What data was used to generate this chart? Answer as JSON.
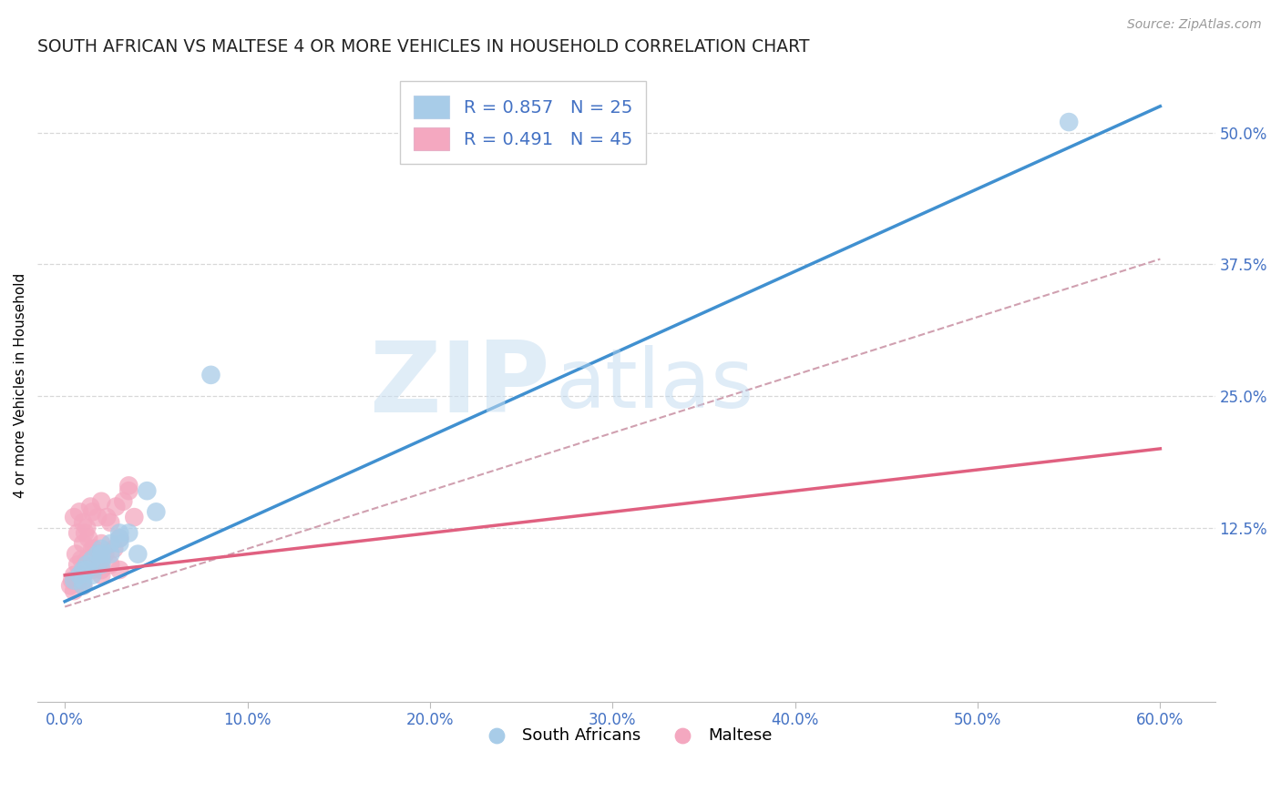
{
  "title": "SOUTH AFRICAN VS MALTESE 4 OR MORE VEHICLES IN HOUSEHOLD CORRELATION CHART",
  "source": "Source: ZipAtlas.com",
  "ylabel": "4 or more Vehicles in Household",
  "xlabel_vals": [
    0.0,
    10.0,
    20.0,
    30.0,
    40.0,
    50.0,
    60.0
  ],
  "xlabel_ticks": [
    "0.0%",
    "10.0%",
    "20.0%",
    "30.0%",
    "40.0%",
    "50.0%",
    "60.0%"
  ],
  "ytick_vals": [
    12.5,
    25.0,
    37.5,
    50.0
  ],
  "ytick_labels": [
    "12.5%",
    "25.0%",
    "37.5%",
    "50.0%"
  ],
  "xlim": [
    -1.5,
    63.0
  ],
  "ylim": [
    -4.0,
    56.0
  ],
  "watermark_zip": "ZIP",
  "watermark_atlas": "atlas",
  "legend_r_blue": "R = 0.857",
  "legend_n_blue": "N = 25",
  "legend_r_pink": "R = 0.491",
  "legend_n_pink": "N = 45",
  "legend_bottom_blue": "South Africans",
  "legend_bottom_pink": "Maltese",
  "blue_scatter_color": "#a8cce8",
  "pink_scatter_color": "#f4a8c0",
  "blue_line_color": "#4090d0",
  "pink_line_color": "#e06080",
  "ref_line_color": "#d0a0b0",
  "grid_color": "#d8d8d8",
  "title_color": "#222222",
  "tick_color": "#4472c4",
  "title_fontsize": 13.5,
  "tick_fontsize": 12,
  "source_fontsize": 10,
  "ylabel_fontsize": 11,
  "sa_x": [
    0.5,
    0.8,
    1.0,
    1.2,
    1.5,
    1.8,
    2.0,
    2.5,
    3.0,
    3.5,
    4.0,
    1.0,
    1.5,
    2.0,
    2.5,
    3.0,
    1.2,
    2.0,
    1.0,
    2.0,
    3.0,
    5.0,
    4.5,
    8.0,
    55.0
  ],
  "sa_y": [
    7.5,
    8.0,
    8.5,
    9.0,
    9.5,
    10.0,
    10.5,
    11.0,
    11.5,
    12.0,
    10.0,
    7.0,
    8.0,
    9.0,
    10.0,
    11.0,
    8.5,
    9.5,
    7.5,
    10.0,
    12.0,
    14.0,
    16.0,
    27.0,
    51.0
  ],
  "mt_x": [
    0.3,
    0.5,
    0.5,
    0.7,
    0.8,
    0.8,
    1.0,
    1.0,
    1.0,
    1.2,
    1.2,
    1.5,
    1.5,
    1.5,
    1.8,
    1.8,
    2.0,
    2.0,
    2.0,
    2.2,
    2.5,
    2.5,
    3.0,
    3.0,
    3.5,
    0.4,
    0.6,
    0.9,
    1.1,
    1.3,
    1.6,
    1.9,
    2.3,
    2.7,
    3.2,
    3.8,
    0.5,
    0.7,
    1.0,
    1.4,
    2.0,
    2.8,
    3.5,
    0.6,
    1.2
  ],
  "mt_y": [
    7.0,
    8.0,
    13.5,
    9.0,
    7.5,
    14.0,
    8.0,
    11.0,
    13.0,
    9.5,
    12.5,
    8.5,
    10.5,
    14.0,
    9.0,
    13.5,
    8.0,
    11.0,
    15.0,
    10.0,
    9.0,
    13.0,
    8.5,
    11.5,
    16.0,
    7.5,
    10.0,
    9.5,
    12.0,
    11.5,
    10.5,
    9.5,
    13.5,
    10.5,
    15.0,
    13.5,
    6.5,
    12.0,
    7.0,
    14.5,
    8.5,
    14.5,
    16.5,
    7.5,
    9.0
  ],
  "blue_line_x0": 0.0,
  "blue_line_y0": 5.5,
  "blue_line_x1": 60.0,
  "blue_line_y1": 52.5,
  "pink_line_x0": 0.0,
  "pink_line_y0": 8.0,
  "pink_line_x1": 60.0,
  "pink_line_y1": 20.0,
  "ref_line_x0": 0.0,
  "ref_line_y0": 5.0,
  "ref_line_x1": 60.0,
  "ref_line_y1": 38.0
}
